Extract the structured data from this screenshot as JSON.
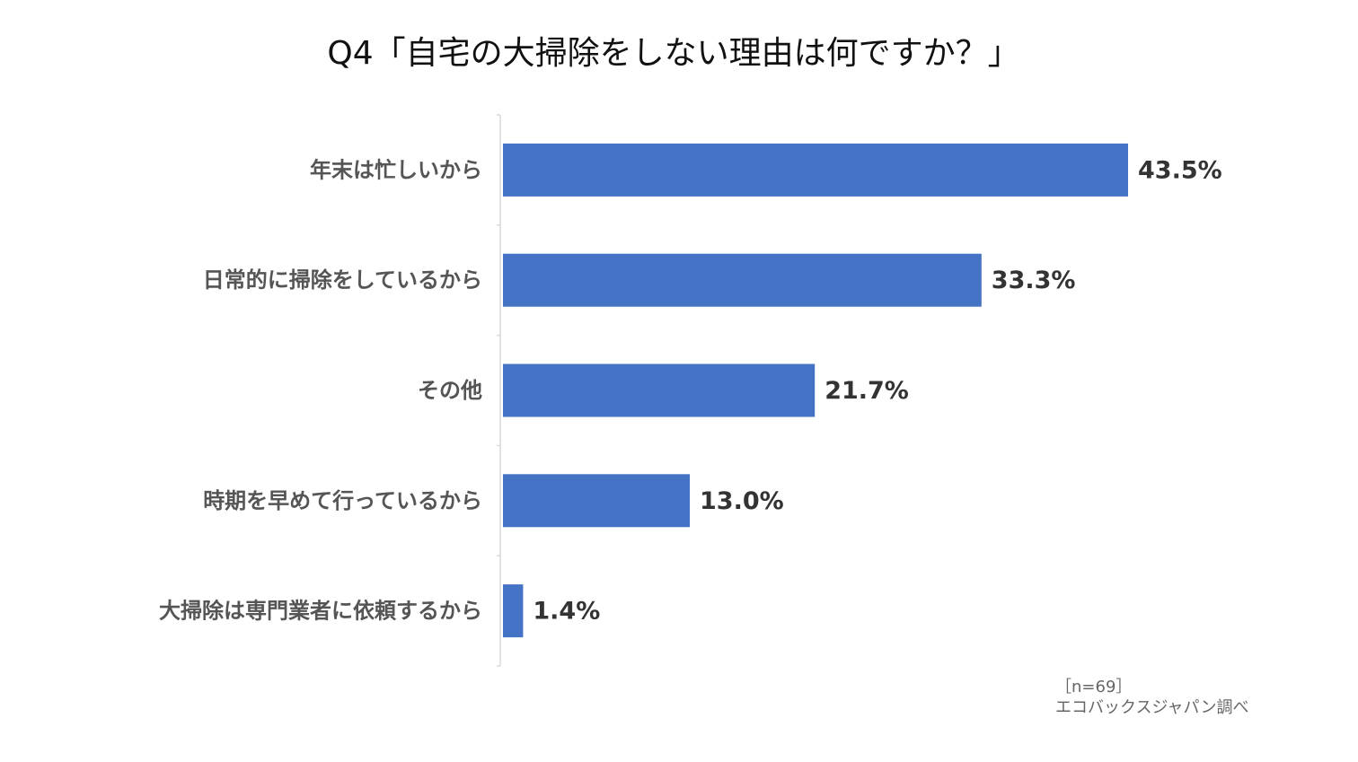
{
  "chart_data": {
    "type": "bar",
    "orientation": "horizontal",
    "title": "Q4「自宅の大掃除をしない理由は何ですか？」",
    "categories": [
      "年末は忙しいから",
      "日常的に掃除をしているから",
      "その他",
      "時期を早めて行っているから",
      "大掃除は専門業者に依頼するから"
    ],
    "values": [
      43.5,
      33.3,
      21.7,
      13.0,
      1.4
    ],
    "value_labels": [
      "43.5%",
      "33.3%",
      "21.7%",
      "13.0%",
      "1.4%"
    ],
    "unit": "%",
    "xlim": [
      0,
      50
    ],
    "grid": false,
    "legend": "none",
    "bar_color": "#4472C4"
  },
  "notes": {
    "sample_size": "［n=69］",
    "source": "エコバックスジャパン調べ"
  }
}
